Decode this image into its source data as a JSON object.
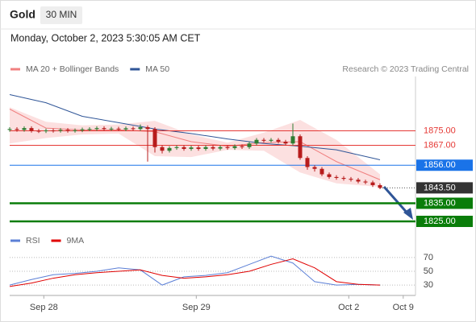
{
  "chart_data": {
    "type": "candlestick",
    "title": "Gold",
    "timeframe": "30 MIN",
    "subtitle": "Monday, October 2, 2023 5:30:05 AM CET",
    "credit": "Research © 2023 Trading Central",
    "up_color": "#2e7d32",
    "down_color": "#b71c1c",
    "xlim": [
      0,
      56
    ],
    "xticks": [
      {
        "value": 4.7,
        "label": "Sep 28"
      },
      {
        "value": 25.7,
        "label": "Sep 29"
      },
      {
        "value": 46.7,
        "label": "Oct 2"
      },
      {
        "value": 54.2,
        "label": "Oct 9"
      }
    ],
    "ylim": [
      1820,
      1905
    ],
    "ohlc": [
      [
        1875.5,
        1877,
        1874.5,
        1876
      ],
      [
        1876,
        1877,
        1874.5,
        1875.5
      ],
      [
        1875.5,
        1877.5,
        1874.5,
        1876.5
      ],
      [
        1876.5,
        1877.5,
        1874,
        1875
      ],
      [
        1875,
        1876,
        1873.8,
        1874.8
      ],
      [
        1874.8,
        1876.2,
        1873.8,
        1875.2
      ],
      [
        1875.2,
        1876.2,
        1874,
        1875
      ],
      [
        1875,
        1876.5,
        1874,
        1875.5
      ],
      [
        1875.5,
        1876.5,
        1874,
        1875
      ],
      [
        1875,
        1876.3,
        1874,
        1875.3
      ],
      [
        1875.3,
        1876.8,
        1874.3,
        1875.8
      ],
      [
        1875.8,
        1877,
        1874.8,
        1876
      ],
      [
        1876,
        1877.5,
        1875,
        1876.5
      ],
      [
        1876.5,
        1877.5,
        1875,
        1876
      ],
      [
        1876,
        1877.2,
        1875,
        1876.2
      ],
      [
        1876.2,
        1877.2,
        1874.8,
        1875.8
      ],
      [
        1875.8,
        1877.4,
        1874.8,
        1876.4
      ],
      [
        1876.4,
        1877.4,
        1875,
        1876
      ],
      [
        1876,
        1878.5,
        1875,
        1877
      ],
      [
        1877,
        1878,
        1858,
        1876
      ],
      [
        1876,
        1877,
        1863,
        1866
      ],
      [
        1866,
        1867,
        1862.5,
        1864
      ],
      [
        1864,
        1866.5,
        1863,
        1865.5
      ],
      [
        1865.5,
        1867,
        1864.5,
        1866
      ],
      [
        1866,
        1867,
        1864,
        1865
      ],
      [
        1865,
        1866.8,
        1864,
        1865.8
      ],
      [
        1865.8,
        1866.8,
        1864,
        1865
      ],
      [
        1865,
        1867,
        1864,
        1866
      ],
      [
        1866,
        1867,
        1864.2,
        1865.2
      ],
      [
        1865.2,
        1867,
        1864.2,
        1866
      ],
      [
        1866,
        1867,
        1864.5,
        1865.5
      ],
      [
        1865.5,
        1867.5,
        1864.5,
        1866.5
      ],
      [
        1866.5,
        1867.5,
        1865,
        1866
      ],
      [
        1866,
        1869,
        1865,
        1868
      ],
      [
        1868,
        1871,
        1867,
        1870
      ],
      [
        1870,
        1871,
        1868.5,
        1869.5
      ],
      [
        1869.5,
        1871,
        1868.5,
        1870
      ],
      [
        1870,
        1871,
        1868,
        1869
      ],
      [
        1869,
        1870,
        1867,
        1868
      ],
      [
        1868,
        1879,
        1867,
        1872
      ],
      [
        1872,
        1873,
        1859,
        1860
      ],
      [
        1860,
        1861,
        1853.5,
        1855
      ],
      [
        1855,
        1856,
        1852.5,
        1854
      ],
      [
        1854,
        1855,
        1850,
        1851
      ],
      [
        1851,
        1852,
        1848.5,
        1849.5
      ],
      [
        1849.5,
        1850.5,
        1848,
        1849
      ],
      [
        1849,
        1850,
        1847.5,
        1848.5
      ],
      [
        1848.5,
        1849.5,
        1847,
        1848
      ],
      [
        1848,
        1849,
        1846,
        1847
      ],
      [
        1847,
        1848,
        1845.5,
        1846.5
      ],
      [
        1846.5,
        1847.5,
        1844,
        1845
      ],
      [
        1845,
        1846,
        1842.8,
        1843.5
      ]
    ],
    "legend": [
      {
        "name": "MA 20 + Bollinger Bands",
        "color": "#f08080"
      },
      {
        "name": "MA 50",
        "color": "#2f5597"
      }
    ],
    "overlay_x": [
      0,
      5,
      10,
      15,
      20,
      25,
      30,
      35,
      40,
      45,
      51
    ],
    "ma20": [
      1887,
      1876.5,
      1875.5,
      1875.5,
      1874.5,
      1869,
      1866.5,
      1868.5,
      1869,
      1858,
      1848
    ],
    "bb_upper": [
      1888,
      1880,
      1878,
      1878.5,
      1880.5,
      1873,
      1868.5,
      1874,
      1881,
      1870,
      1851
    ],
    "bb_lower": [
      1868,
      1871,
      1873,
      1873.5,
      1861,
      1860.5,
      1864.5,
      1864,
      1852,
      1846,
      1844
    ],
    "ma50": [
      1895,
      1890.5,
      1883,
      1879.5,
      1876,
      1873.5,
      1870.5,
      1868,
      1866.5,
      1864.5,
      1859
    ],
    "band_color": "#fbd5d5",
    "levels": [
      {
        "value": 1875,
        "label": "1875.00",
        "color": "#e53935",
        "style": "text"
      },
      {
        "value": 1867,
        "label": "1867.00",
        "color": "#e53935",
        "style": "text"
      },
      {
        "value": 1856,
        "label": "1856.00",
        "color": "#1a73e8",
        "style": "box"
      },
      {
        "value": 1843.5,
        "label": "1843.50",
        "color": "#333333",
        "style": "current"
      },
      {
        "value": 1835,
        "label": "1835.00",
        "color": "#0a7d0a",
        "style": "box"
      },
      {
        "value": 1825,
        "label": "1825.00",
        "color": "#0a7d0a",
        "style": "box"
      }
    ],
    "rsi": {
      "legend": [
        {
          "name": "RSI",
          "color": "#5b7fd6"
        },
        {
          "name": "9MA",
          "color": "#e00000"
        }
      ],
      "x": [
        0,
        3,
        6,
        9,
        12,
        15,
        18,
        21,
        24,
        27,
        30,
        33,
        36,
        39,
        42,
        45,
        48,
        51
      ],
      "rsi": [
        30,
        38,
        45,
        47,
        50,
        55,
        52,
        30,
        42,
        44,
        48,
        60,
        72,
        62,
        35,
        30,
        31,
        30
      ],
      "ma9": [
        28,
        33,
        40,
        45,
        48,
        50,
        52,
        44,
        40,
        42,
        45,
        50,
        60,
        68,
        55,
        35,
        31,
        30
      ],
      "ylim": [
        15,
        85
      ],
      "yticks": [
        70,
        50,
        30
      ]
    }
  }
}
